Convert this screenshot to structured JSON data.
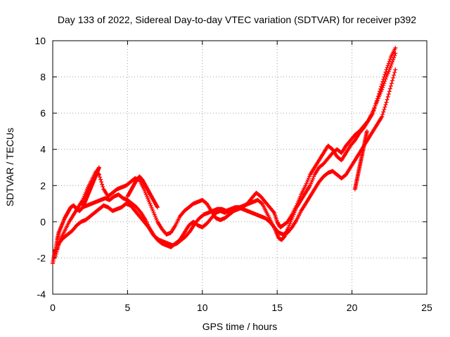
{
  "chart_data": {
    "type": "scatter",
    "title": "Day 133 of 2022, Sidereal Day-to-day VTEC variation (SDTVAR) for receiver p392",
    "xlabel": "GPS time / hours",
    "ylabel": "SDTVAR / TECUs",
    "xlim": [
      0,
      25
    ],
    "ylim": [
      -4,
      10
    ],
    "xticks": [
      0,
      5,
      10,
      15,
      20,
      25
    ],
    "yticks": [
      -4,
      -2,
      0,
      2,
      4,
      6,
      8,
      10
    ],
    "xtick_labels": [
      "0",
      "5",
      "10",
      "15",
      "20",
      "25"
    ],
    "ytick_labels": [
      "-4",
      "-2",
      "0",
      "2",
      "4",
      "6",
      "8",
      "10"
    ],
    "grid": true,
    "marker": "plus",
    "color": "#ff0000",
    "series": [
      {
        "x": [
          0.0,
          0.1,
          0.2,
          0.3,
          0.4,
          0.6,
          0.8,
          1.0,
          1.2,
          1.4,
          1.6,
          1.8,
          2.0,
          2.3,
          2.6,
          2.9,
          3.2,
          3.5,
          3.8,
          4.1,
          4.4,
          4.7,
          5.0,
          5.3,
          5.6,
          5.9,
          6.2,
          6.5,
          6.8,
          7.1,
          7.4,
          7.7,
          8.0,
          8.3,
          8.6,
          8.9,
          9.2,
          9.5,
          9.8,
          10.1,
          10.4,
          10.7,
          11.0,
          11.3,
          11.6,
          11.9,
          12.2,
          12.5,
          12.8,
          13.1,
          13.4,
          13.7,
          14.0,
          14.3,
          14.6,
          14.9,
          15.1,
          15.3,
          15.5,
          15.7,
          16.0,
          16.3,
          16.6,
          16.9,
          17.2,
          17.5,
          17.8,
          18.1,
          18.4,
          18.7,
          19.0,
          19.3,
          19.6,
          19.9,
          20.2,
          20.5,
          20.8,
          21.1,
          21.4,
          21.7,
          22.0,
          22.3,
          22.6,
          22.9
        ],
        "y": [
          -2.3,
          -1.8,
          -1.5,
          -1.0,
          -0.6,
          -0.2,
          0.2,
          0.5,
          0.8,
          0.9,
          0.7,
          0.6,
          0.8,
          0.9,
          1.0,
          1.1,
          1.2,
          1.3,
          1.2,
          1.4,
          1.5,
          1.3,
          1.2,
          1.0,
          0.8,
          0.5,
          0.1,
          -0.4,
          -0.8,
          -1.0,
          -1.1,
          -1.2,
          -1.3,
          -1.2,
          -1.0,
          -0.8,
          -0.5,
          -0.1,
          0.2,
          0.4,
          0.5,
          0.6,
          0.7,
          0.7,
          0.6,
          0.7,
          0.8,
          0.8,
          0.9,
          1.0,
          1.1,
          1.2,
          1.0,
          0.5,
          0.0,
          -0.5,
          -0.9,
          -1.0,
          -0.8,
          -0.4,
          0.2,
          0.8,
          1.2,
          1.6,
          2.0,
          2.6,
          3.0,
          3.2,
          3.5,
          3.8,
          4.0,
          3.8,
          4.2,
          4.5,
          4.8,
          5.0,
          5.3,
          5.6,
          6.0,
          6.8,
          7.6,
          8.4,
          9.1,
          9.6
        ]
      },
      {
        "x": [
          0.3,
          0.5,
          0.8,
          1.1,
          1.4,
          1.7,
          2.0,
          2.3,
          2.6,
          2.9,
          3.1,
          3.4,
          3.7,
          4.0,
          4.3,
          4.6,
          4.9,
          5.2,
          5.5,
          5.8,
          6.1,
          6.4,
          6.7,
          7.0,
          7.3,
          7.6,
          7.9,
          8.2,
          8.5,
          8.8,
          9.1,
          9.4,
          9.7,
          10.0,
          10.3,
          10.6,
          10.9,
          11.2,
          11.5,
          11.8,
          12.1,
          12.4,
          12.7,
          13.0,
          13.3,
          13.6,
          13.9,
          14.2,
          14.5,
          14.8,
          15.0,
          15.2,
          15.4,
          15.7,
          16.0,
          16.3,
          16.6,
          16.9,
          17.2,
          17.5,
          17.8,
          18.1,
          18.4,
          18.7,
          19.0,
          19.3,
          19.6,
          19.9,
          20.2,
          20.5,
          20.8,
          21.1,
          21.4,
          21.7,
          22.0,
          22.3,
          22.6,
          22.9
        ],
        "y": [
          -1.5,
          -1.0,
          -0.5,
          0.0,
          0.4,
          0.8,
          1.2,
          1.8,
          2.3,
          2.8,
          2.6,
          1.8,
          1.4,
          1.6,
          1.8,
          1.9,
          2.0,
          2.2,
          2.4,
          2.3,
          1.8,
          1.2,
          0.6,
          0.0,
          -0.4,
          -0.7,
          -0.6,
          -0.2,
          0.3,
          0.6,
          0.8,
          1.0,
          1.1,
          1.2,
          1.0,
          0.6,
          0.2,
          0.1,
          0.2,
          0.4,
          0.6,
          0.7,
          0.8,
          1.0,
          1.3,
          1.6,
          1.4,
          1.1,
          0.8,
          0.5,
          0.0,
          -0.3,
          -0.2,
          0.0,
          0.4,
          0.9,
          1.5,
          2.0,
          2.6,
          3.0,
          3.4,
          3.8,
          4.2,
          4.0,
          3.6,
          3.4,
          3.8,
          4.2,
          4.5,
          4.9,
          5.2,
          5.6,
          6.1,
          6.7,
          7.3,
          8.0,
          8.6,
          9.3
        ]
      },
      {
        "x": [
          0.2,
          0.4,
          0.7,
          1.0,
          1.3,
          1.6,
          1.9,
          2.2,
          2.5,
          2.8,
          3.1,
          3.4,
          3.7,
          4.0,
          4.3,
          4.6,
          4.9,
          5.2,
          5.5,
          5.8,
          6.1,
          6.4,
          6.7,
          7.0,
          7.3,
          7.6,
          7.9,
          8.2,
          8.5,
          8.8,
          9.1,
          9.4,
          9.7,
          10.0,
          10.3,
          10.6,
          10.9,
          11.2,
          11.5,
          11.8,
          12.1,
          12.4,
          12.7,
          13.0,
          13.3,
          13.6,
          13.9,
          14.2,
          14.5,
          14.8,
          15.1,
          15.4,
          15.7,
          16.0,
          16.3,
          16.6,
          16.9,
          17.2,
          17.5,
          17.8,
          18.1,
          18.4,
          18.7,
          19.0,
          19.3,
          19.6,
          19.9,
          20.2,
          20.5,
          20.8,
          21.1,
          21.4,
          21.7,
          22.0,
          22.3,
          22.6,
          22.9
        ],
        "y": [
          -1.9,
          -1.2,
          -0.9,
          -0.7,
          -0.5,
          -0.2,
          0.0,
          0.1,
          0.3,
          0.5,
          0.7,
          0.9,
          0.8,
          0.6,
          0.7,
          0.8,
          1.0,
          0.9,
          0.6,
          0.3,
          0.0,
          -0.3,
          -0.7,
          -1.0,
          -1.2,
          -1.3,
          -1.4,
          -1.2,
          -1.0,
          -0.6,
          -0.2,
          0.0,
          -0.2,
          -0.3,
          -0.1,
          0.2,
          0.5,
          0.6,
          0.5,
          0.6,
          0.7,
          0.8,
          0.7,
          0.6,
          0.5,
          0.4,
          0.3,
          0.2,
          0.0,
          -0.3,
          -0.6,
          -0.7,
          -0.6,
          -0.3,
          0.1,
          0.6,
          1.0,
          1.4,
          1.8,
          2.2,
          2.5,
          2.7,
          2.8,
          2.6,
          2.4,
          2.6,
          3.0,
          3.4,
          3.8,
          4.2,
          4.6,
          5.0,
          5.4,
          5.8,
          6.6,
          7.5,
          8.4
        ]
      },
      {
        "x": [
          20.2,
          20.3,
          20.4,
          20.5,
          20.6,
          20.7,
          20.8,
          20.9,
          21.0
        ],
        "y": [
          1.8,
          2.2,
          2.6,
          3.0,
          3.4,
          3.8,
          4.2,
          4.6,
          5.0
        ]
      },
      {
        "x": [
          2.0,
          2.1,
          2.2,
          2.3,
          2.4,
          2.5,
          2.6,
          2.7,
          2.8,
          2.9,
          3.0,
          3.1
        ],
        "y": [
          0.9,
          1.0,
          1.2,
          1.4,
          1.6,
          1.8,
          2.0,
          2.2,
          2.4,
          2.6,
          2.8,
          3.0
        ]
      },
      {
        "x": [
          5.0,
          5.2,
          5.4,
          5.6,
          5.8,
          6.0,
          6.2,
          6.4,
          6.6,
          6.8,
          7.0
        ],
        "y": [
          1.4,
          1.7,
          2.0,
          2.3,
          2.5,
          2.3,
          2.0,
          1.7,
          1.4,
          1.1,
          0.8
        ]
      }
    ]
  }
}
